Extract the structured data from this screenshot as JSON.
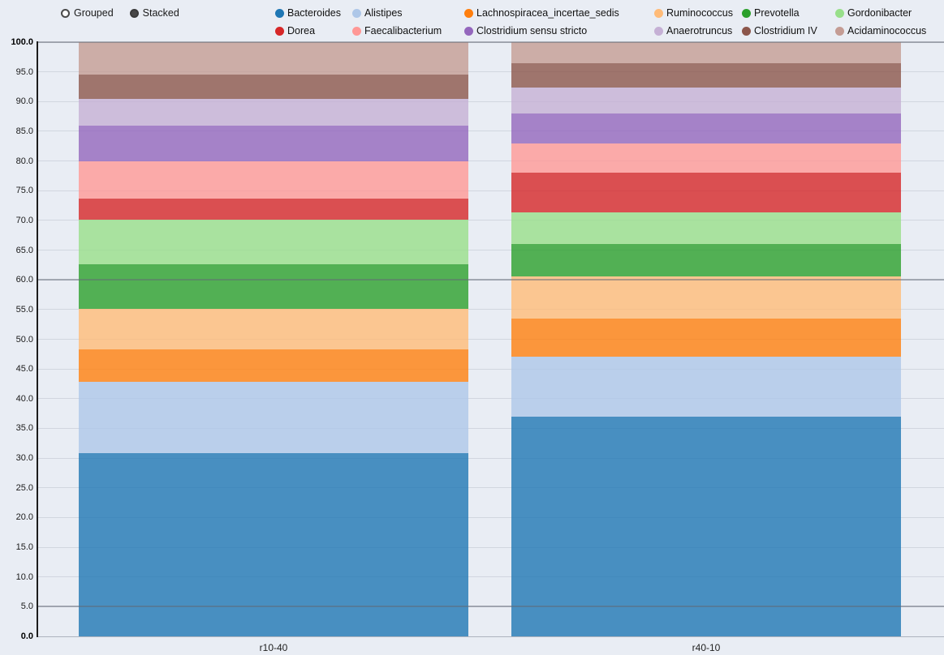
{
  "controls": {
    "items": [
      {
        "label": "Grouped",
        "selected": false
      },
      {
        "label": "Stacked",
        "selected": true
      }
    ]
  },
  "chart_data": {
    "type": "bar",
    "mode": "stacked",
    "categories": [
      "r10-40",
      "r40-10"
    ],
    "series": [
      {
        "name": "Bacteroides",
        "color": "#1f77b4",
        "values": [
          30.8,
          37.0
        ]
      },
      {
        "name": "Alistipes",
        "color": "#aec7e8",
        "values": [
          12.0,
          10.1
        ]
      },
      {
        "name": "Lachnospiracea_incertae_sedis",
        "color": "#ff7f0e",
        "values": [
          5.5,
          6.4
        ]
      },
      {
        "name": "Ruminococcus",
        "color": "#ffbb78",
        "values": [
          6.8,
          7.1
        ]
      },
      {
        "name": "Prevotella",
        "color": "#2ca02c",
        "values": [
          7.5,
          5.4
        ]
      },
      {
        "name": "Gordonibacter",
        "color": "#98df8a",
        "values": [
          7.5,
          5.3
        ]
      },
      {
        "name": "Dorea",
        "color": "#d62728",
        "values": [
          3.6,
          6.7
        ]
      },
      {
        "name": "Faecalibacterium",
        "color": "#ff9896",
        "values": [
          6.2,
          4.9
        ]
      },
      {
        "name": "Clostridium sensu stricto",
        "color": "#9467bd",
        "values": [
          6.0,
          5.1
        ]
      },
      {
        "name": "Anaerotruncus",
        "color": "#c5b0d5",
        "values": [
          4.5,
          4.4
        ]
      },
      {
        "name": "Clostridium IV",
        "color": "#8c564b",
        "values": [
          4.2,
          4.1
        ]
      },
      {
        "name": "Acidaminococcus",
        "color": "#c49c94",
        "values": [
          5.4,
          3.5
        ]
      }
    ],
    "ylim": [
      0,
      100
    ],
    "ytick_step": 5,
    "ytick_labels": [
      "0.0",
      "5.0",
      "10.0",
      "15.0",
      "20.0",
      "25.0",
      "30.0",
      "35.0",
      "40.0",
      "45.0",
      "50.0",
      "55.0",
      "60.0",
      "65.0",
      "70.0",
      "75.0",
      "80.0",
      "85.0",
      "90.0",
      "95.0",
      "100.0"
    ],
    "emphasized_gridlines": [
      100,
      60,
      5
    ],
    "grid": true,
    "legend_position": "top"
  }
}
